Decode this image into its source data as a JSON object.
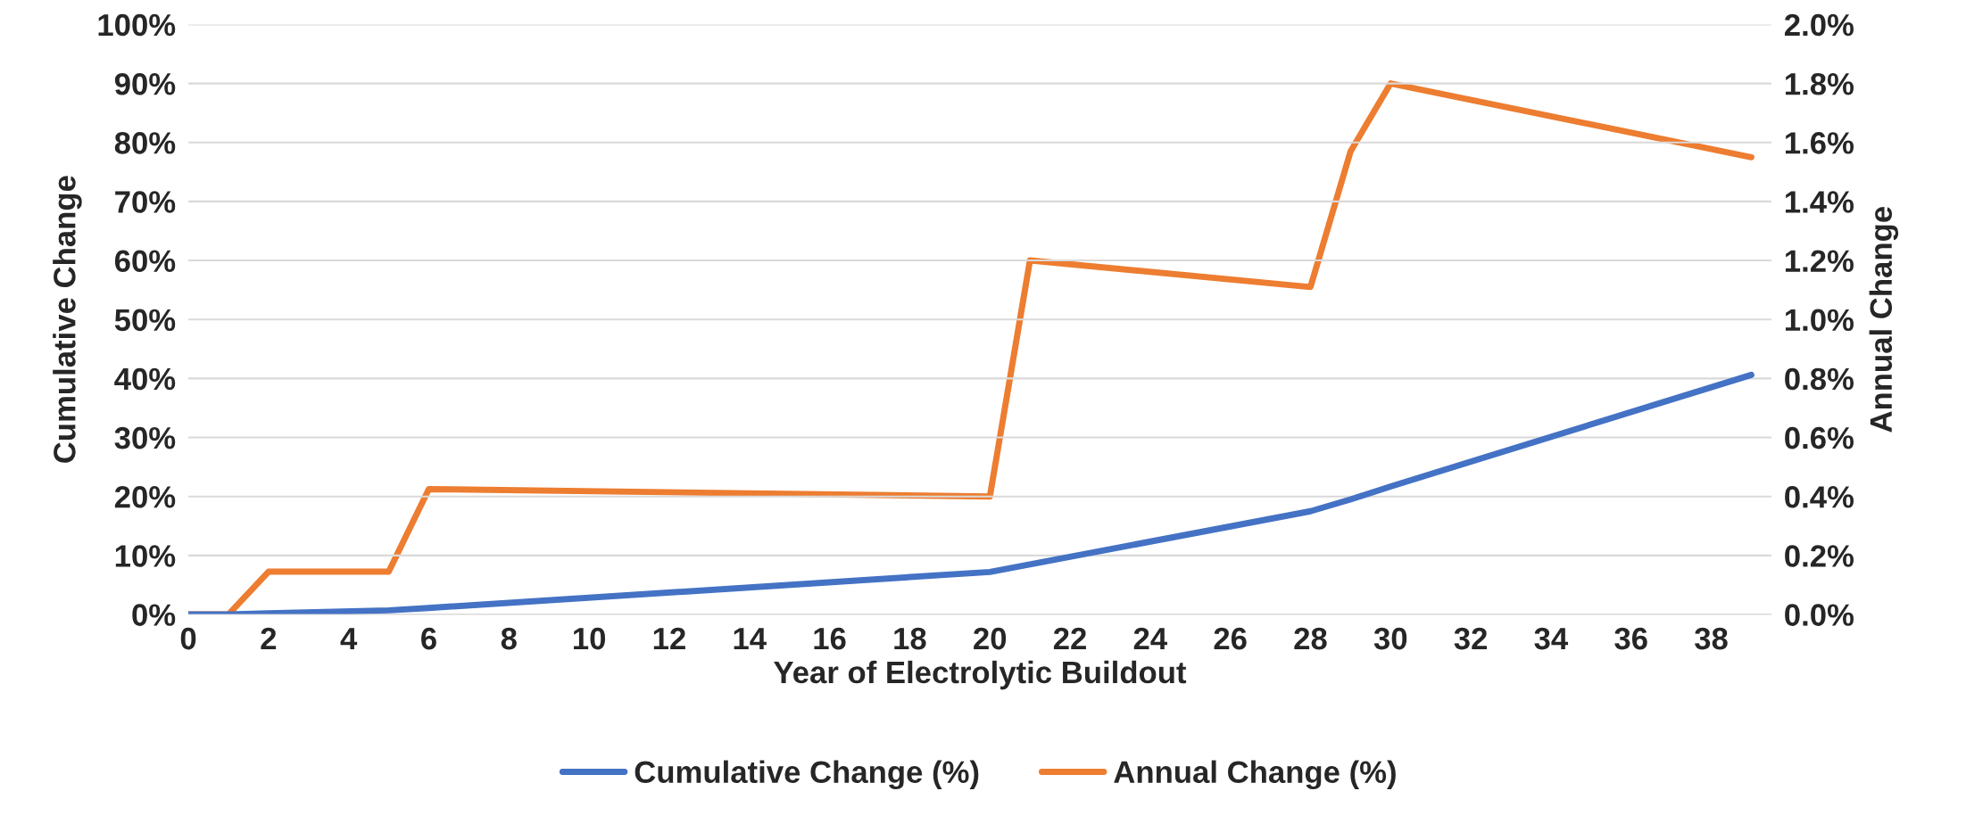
{
  "chart_data": {
    "type": "line",
    "xlabel": "Year of Electrolytic Buildout",
    "ylabel": "Cumulative Change",
    "y2label": "Annual Change",
    "series": [
      {
        "name": "Cumulative Change (%)",
        "color": "#4472c4",
        "x": [
          0,
          1,
          2,
          5,
          6,
          20,
          28,
          29,
          30,
          39
        ],
        "values": [
          0,
          0,
          0.2,
          0.7,
          1.1,
          7.2,
          17.5,
          19.5,
          21.7,
          40.6
        ]
      },
      {
        "name": "Annual Change (%)",
        "color": "#ed7d31",
        "axis": "y2",
        "x": [
          0,
          1,
          2,
          5,
          6,
          20,
          21,
          28,
          29,
          30,
          39
        ],
        "values": [
          0,
          0,
          0.145,
          0.145,
          0.425,
          0.4,
          1.2,
          1.11,
          1.57,
          1.8,
          1.55
        ]
      }
    ],
    "xlim": [
      0,
      39.5
    ],
    "xticks": [
      0,
      2,
      4,
      6,
      8,
      10,
      12,
      14,
      16,
      18,
      20,
      22,
      24,
      26,
      28,
      30,
      32,
      34,
      36,
      38
    ],
    "ylim": [
      0,
      100
    ],
    "yticks": [
      {
        "value": 0,
        "label": "0%"
      },
      {
        "value": 10,
        "label": "10%"
      },
      {
        "value": 20,
        "label": "20%"
      },
      {
        "value": 30,
        "label": "30%"
      },
      {
        "value": 40,
        "label": "40%"
      },
      {
        "value": 50,
        "label": "50%"
      },
      {
        "value": 60,
        "label": "60%"
      },
      {
        "value": 70,
        "label": "70%"
      },
      {
        "value": 80,
        "label": "80%"
      },
      {
        "value": 90,
        "label": "90%"
      },
      {
        "value": 100,
        "label": "100%"
      }
    ],
    "y2lim": [
      0,
      2
    ],
    "y2ticks": [
      {
        "value": 0,
        "label": "0.0%"
      },
      {
        "value": 0.2,
        "label": "0.2%"
      },
      {
        "value": 0.4,
        "label": "0.4%"
      },
      {
        "value": 0.6,
        "label": "0.6%"
      },
      {
        "value": 0.8,
        "label": "0.8%"
      },
      {
        "value": 1.0,
        "label": "1.0%"
      },
      {
        "value": 1.2,
        "label": "1.2%"
      },
      {
        "value": 1.4,
        "label": "1.4%"
      },
      {
        "value": 1.6,
        "label": "1.6%"
      },
      {
        "value": 1.8,
        "label": "1.8%"
      },
      {
        "value": 2.0,
        "label": "2.0%"
      }
    ],
    "grid": "y",
    "legend": "bottom",
    "marker": "none",
    "line_style": "solid"
  }
}
